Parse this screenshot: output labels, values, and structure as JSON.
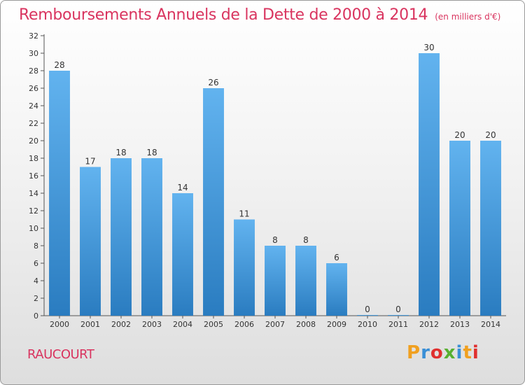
{
  "header": {
    "title": "Remboursements Annuels de la Dette de 2000 à 2014",
    "subtitle": "(en milliers d'€)"
  },
  "footer": {
    "commune": "RAUCOURT",
    "logo_text": "Proxiti",
    "logo_colors": [
      "#f0a020",
      "#3a8fd6",
      "#e0302f",
      "#58b030",
      "#3a8fd6",
      "#f0a020",
      "#e0302f"
    ]
  },
  "colors": {
    "bar_light": "#62b3ef",
    "bar_dark": "#2a7cc0",
    "axis": "#555555",
    "grid": "#dddddd",
    "text": "#333333"
  },
  "chart_data": {
    "type": "bar",
    "categories": [
      "2000",
      "2001",
      "2002",
      "2003",
      "2004",
      "2005",
      "2006",
      "2007",
      "2008",
      "2009",
      "2010",
      "2011",
      "2012",
      "2013",
      "2014"
    ],
    "values": [
      28,
      17,
      18,
      18,
      14,
      26,
      11,
      8,
      8,
      6,
      0,
      0,
      30,
      20,
      20
    ],
    "data_labels": [
      "28",
      "17",
      "18",
      "18",
      "14",
      "26",
      "11",
      "8",
      "8",
      "6",
      "0",
      "0",
      "30",
      "20",
      "20"
    ],
    "ylim": [
      0,
      32
    ],
    "yticks": [
      "0",
      "2",
      "4",
      "6",
      "8",
      "10",
      "12",
      "14",
      "16",
      "18",
      "20",
      "22",
      "24",
      "26",
      "28",
      "30",
      "32"
    ],
    "grid": false,
    "legend": "none"
  }
}
